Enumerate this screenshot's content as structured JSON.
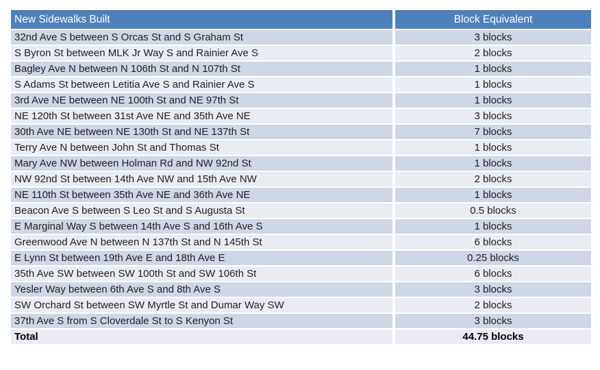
{
  "colors": {
    "header_bg": "#4E81BC",
    "header_text": "#FFFFFF",
    "header_border": "#2E5380",
    "band_odd": "#CFD6E5",
    "band_even": "#E9ECF3",
    "body_text": "#1F1F1F"
  },
  "table": {
    "headers": {
      "location": "New Sidewalks Built",
      "blocks": "Block Equivalent"
    },
    "rows": [
      {
        "location": "32nd Ave S between S Orcas St and S Graham St",
        "blocks": "3 blocks"
      },
      {
        "location": "S Byron St between MLK Jr Way S and Rainier Ave S",
        "blocks": "2 blocks"
      },
      {
        "location": "Bagley Ave N between N 106th St and N 107th St",
        "blocks": "1 blocks"
      },
      {
        "location": "S Adams St between Letitia Ave S and Rainier Ave S",
        "blocks": "1 blocks"
      },
      {
        "location": "3rd Ave NE between NE 100th St and NE 97th St",
        "blocks": "1 blocks"
      },
      {
        "location": "NE 120th St between 31st Ave NE and 35th Ave NE",
        "blocks": "3 blocks"
      },
      {
        "location": "30th Ave NE between NE 130th St and NE 137th St",
        "blocks": "7 blocks"
      },
      {
        "location": "Terry Ave N between John St and Thomas St",
        "blocks": "1 blocks"
      },
      {
        "location": "Mary Ave NW between Holman Rd and NW 92nd St",
        "blocks": "1 blocks"
      },
      {
        "location": "NW 92nd St between 14th Ave NW and 15th Ave NW",
        "blocks": "2 blocks"
      },
      {
        "location": "NE 110th St between 35th Ave NE and 36th Ave NE",
        "blocks": "1 blocks"
      },
      {
        "location": "Beacon Ave S between S Leo St and S Augusta St",
        "blocks": "0.5 blocks"
      },
      {
        "location": "E Marginal Way S between 14th Ave S and 16th Ave S",
        "blocks": "1 blocks"
      },
      {
        "location": "Greenwood Ave N between N 137th St and N 145th St",
        "blocks": "6 blocks"
      },
      {
        "location": "E Lynn St between 19th Ave E and 18th Ave E",
        "blocks": "0.25 blocks"
      },
      {
        "location": "35th Ave SW between SW 100th St and SW 106th St",
        "blocks": "6 blocks"
      },
      {
        "location": "Yesler Way between 6th Ave S and 8th Ave S",
        "blocks": "3 blocks"
      },
      {
        "location": "SW Orchard St between SW Myrtle St and Dumar Way SW",
        "blocks": "2 blocks"
      },
      {
        "location": "37th Ave S from S Cloverdale St to S Kenyon St",
        "blocks": "3 blocks"
      }
    ],
    "total": {
      "label": "Total",
      "value": "44.75 blocks"
    }
  },
  "chart_data": {
    "type": "table",
    "title": "New Sidewalks Built",
    "columns": [
      "New Sidewalks Built",
      "Block Equivalent"
    ],
    "categories": [
      "32nd Ave S between S Orcas St and S Graham St",
      "S Byron St between MLK Jr Way S and Rainier Ave S",
      "Bagley Ave N between N 106th St and N 107th St",
      "S Adams St between Letitia Ave S and Rainier Ave S",
      "3rd Ave NE between NE 100th St and NE 97th St",
      "NE 120th St between 31st Ave NE and 35th Ave NE",
      "30th Ave NE between NE 130th St and NE 137th St",
      "Terry Ave N between John St and Thomas St",
      "Mary Ave NW between Holman Rd and NW 92nd St",
      "NW 92nd St between 14th Ave NW and 15th Ave NW",
      "NE 110th St between 35th Ave NE and 36th Ave NE",
      "Beacon Ave S between S Leo St and S Augusta St",
      "E Marginal Way S between 14th Ave S and 16th Ave S",
      "Greenwood Ave N between N 137th St and N 145th St",
      "E Lynn St between 19th Ave E and 18th Ave E",
      "35th Ave SW between SW 100th St and SW 106th St",
      "Yesler Way between 6th Ave S and 8th Ave S",
      "SW Orchard St between SW Myrtle St and Dumar Way SW",
      "37th Ave S from S Cloverdale St to S Kenyon St"
    ],
    "values_blocks": [
      3,
      2,
      1,
      1,
      1,
      3,
      7,
      1,
      1,
      2,
      1,
      0.5,
      1,
      6,
      0.25,
      6,
      3,
      2,
      3
    ],
    "total_blocks": 44.75
  }
}
